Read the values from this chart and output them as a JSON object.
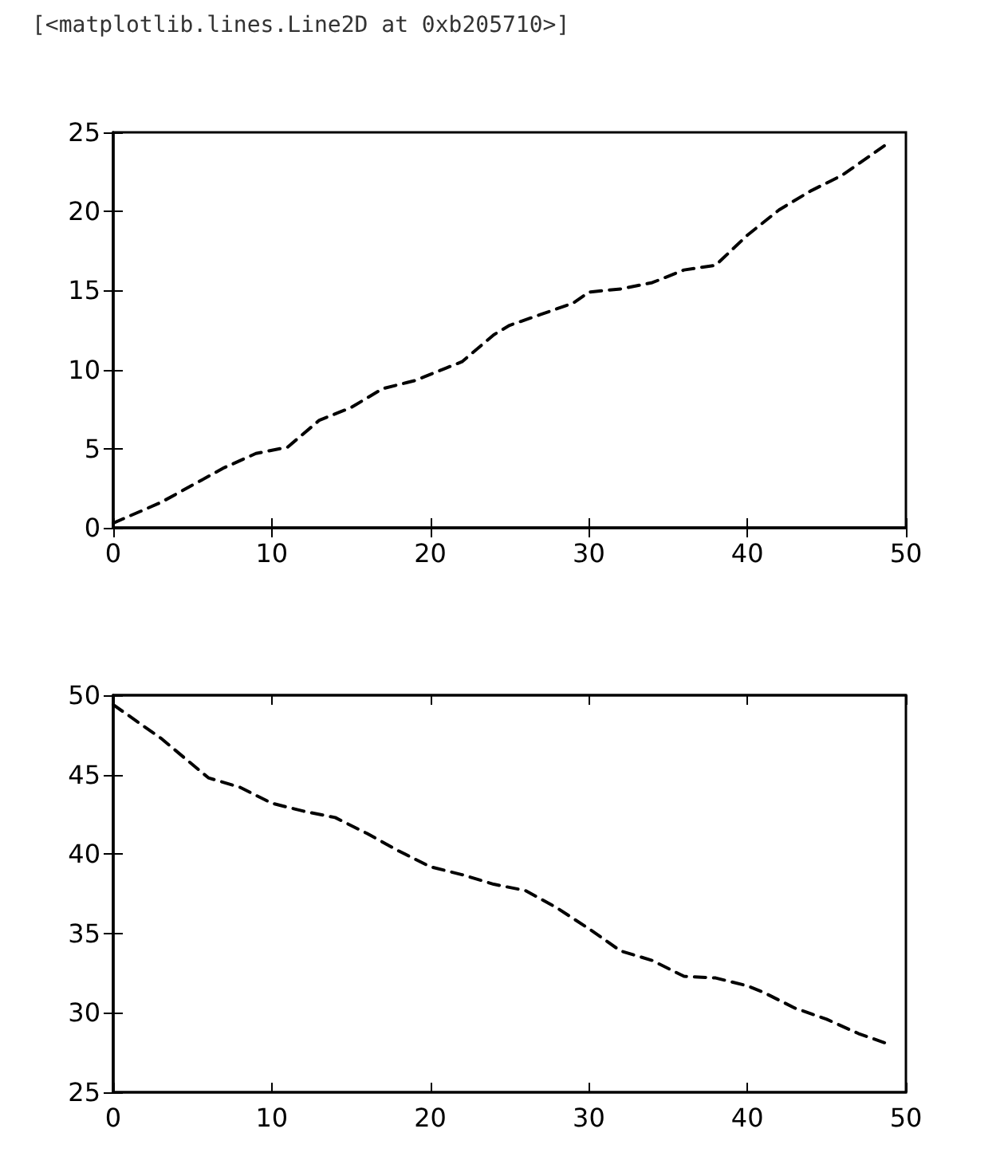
{
  "chart_data": [
    {
      "type": "line",
      "annotations": [
        "[<matplotlib.lines.Line2D at 0xb205710>]"
      ],
      "line_style": "dashed",
      "marker": "none",
      "series": [
        {
          "color": "#000000",
          "x": [
            0,
            3,
            5,
            7,
            9,
            11,
            13,
            15,
            17,
            19,
            21,
            22,
            24,
            25,
            27,
            29,
            30,
            32,
            34,
            36,
            38,
            40,
            42,
            44,
            46,
            47,
            49
          ],
          "values": [
            0.3,
            1.6,
            2.7,
            3.8,
            4.7,
            5.1,
            6.8,
            7.6,
            8.8,
            9.3,
            10.1,
            10.5,
            12.2,
            12.8,
            13.5,
            14.2,
            14.9,
            15.1,
            15.5,
            16.3,
            16.6,
            18.5,
            20.1,
            21.3,
            22.3,
            23.0,
            24.4
          ]
        }
      ],
      "xlim": [
        0,
        50
      ],
      "xticks": [
        0,
        10,
        20,
        30,
        40,
        50
      ],
      "ylim": [
        0,
        25
      ],
      "yticks": [
        0,
        5,
        10,
        15,
        20,
        25
      ]
    },
    {
      "type": "line",
      "line_style": "dashed",
      "marker": "none",
      "series": [
        {
          "color": "#000000",
          "x": [
            0,
            3,
            6,
            8,
            10,
            12,
            14,
            16,
            18,
            20,
            22,
            24,
            26,
            28,
            30,
            32,
            34,
            36,
            38,
            40,
            41,
            43,
            45,
            47,
            49
          ],
          "values": [
            49.4,
            47.3,
            44.8,
            44.2,
            43.2,
            42.7,
            42.3,
            41.3,
            40.2,
            39.2,
            38.7,
            38.1,
            37.7,
            36.6,
            35.3,
            33.9,
            33.3,
            32.3,
            32.2,
            31.7,
            31.3,
            30.3,
            29.6,
            28.7,
            28.0
          ]
        }
      ],
      "xlim": [
        0,
        50
      ],
      "xticks": [
        0,
        10,
        20,
        30,
        40,
        50
      ],
      "ylim": [
        25,
        50
      ],
      "yticks": [
        25,
        30,
        35,
        40,
        45,
        50
      ]
    }
  ]
}
